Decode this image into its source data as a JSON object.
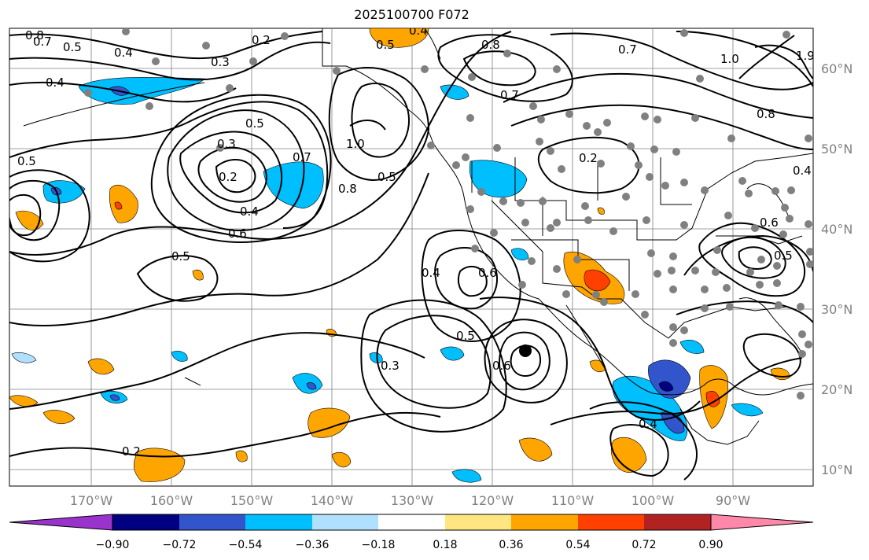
{
  "title": "2025100700 F072",
  "lat_labels": [
    "60°N",
    "50°N",
    "40°N",
    "30°N",
    "20°N",
    "10°N"
  ],
  "lon_labels": [
    "170°W",
    "160°W",
    "150°W",
    "140°W",
    "130°W",
    "120°W",
    "110°W",
    "100°W",
    "90°W"
  ],
  "colorbar": {
    "ticks": [
      "−0.90",
      "−0.72",
      "−0.54",
      "−0.36",
      "−0.18",
      "0.18",
      "0.36",
      "0.54",
      "0.72",
      "0.90"
    ],
    "colors": [
      "#9933cc",
      "#000080",
      "#3355cc",
      "#00bfff",
      "#b0e0ff",
      "#ffffff",
      "#ffe680",
      "#ffa500",
      "#ff4000",
      "#b22222",
      "#ff88aa"
    ]
  },
  "contour_labels": [
    "0.8",
    "0.7",
    "0.5",
    "0.4",
    "0.2",
    "0.4",
    "0.3",
    "0.4",
    "0.5",
    "0.5",
    "0.3",
    "0.2",
    "0.7",
    "1.0",
    "0.8",
    "0.5",
    "0.4",
    "0.6",
    "0.5",
    "0.5",
    "0.8",
    "0.7",
    "1.0",
    "1.9",
    "0.7",
    "0.8",
    "0.2",
    "0.4",
    "0.6",
    "0.5",
    "0.4",
    "0.6",
    "0.5",
    "0.6",
    "0.3",
    "0.4",
    "0.2"
  ],
  "map_colors": {
    "contour": "#000000",
    "grid": "#808080",
    "station": "#808080",
    "coast": "#000000"
  }
}
